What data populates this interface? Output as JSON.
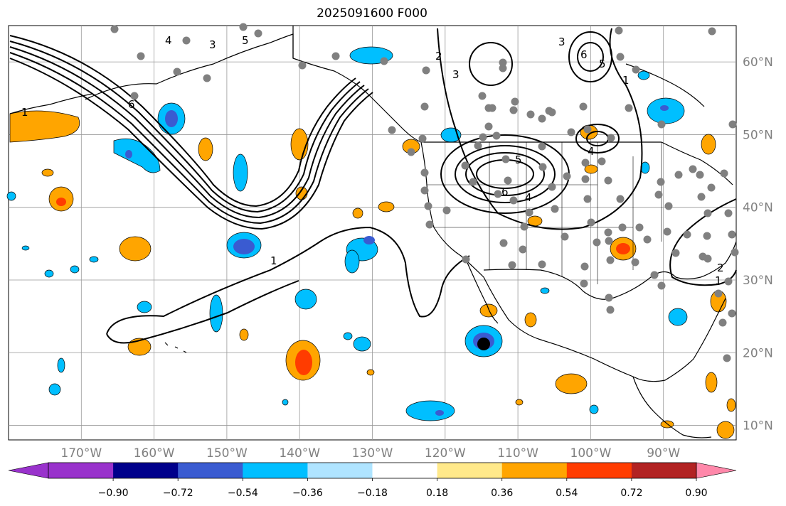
{
  "title": "2025091600 F000",
  "map": {
    "lon_range": [
      -180,
      -80
    ],
    "lat_range": [
      8,
      65
    ],
    "lon_ticks": [
      "170°W",
      "160°W",
      "150°W",
      "140°W",
      "130°W",
      "120°W",
      "110°W",
      "100°W",
      "90°W"
    ],
    "lat_ticks": [
      "10°N",
      "20°N",
      "30°N",
      "40°N",
      "50°N",
      "60°N"
    ],
    "lon_values": [
      -170,
      -160,
      -150,
      -140,
      -130,
      -120,
      -110,
      -100,
      -90
    ],
    "lat_values": [
      10,
      20,
      30,
      40,
      50,
      60
    ],
    "grid": true
  },
  "contour_labels": [
    "1",
    "2",
    "3",
    "4",
    "5",
    "6"
  ],
  "colorbar": {
    "ticks": [
      "−0.90",
      "−0.72",
      "−0.54",
      "−0.36",
      "−0.18",
      "0.18",
      "0.36",
      "0.54",
      "0.72",
      "0.90"
    ],
    "colors": [
      "#9932cc",
      "#00008b",
      "#3a5bd1",
      "#00bfff",
      "#afe4ff",
      "#ffffff",
      "#ffe98a",
      "#ffa500",
      "#ff3c00",
      "#b22222",
      "#ff88aa"
    ],
    "extend": "both"
  },
  "colors": {
    "grid": "#999999",
    "land_outline": "#000000",
    "station": "#808080",
    "marker": "#000000"
  }
}
